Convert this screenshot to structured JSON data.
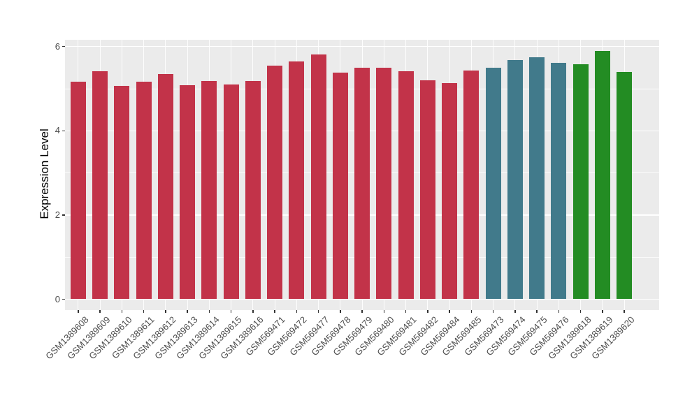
{
  "chart_data": {
    "type": "bar",
    "title": "",
    "xlabel": "",
    "ylabel": "Expression Level",
    "ylim": [
      -0.26,
      6.16
    ],
    "yticks": [
      0,
      2,
      4,
      6
    ],
    "yticks_minor": [
      1,
      3,
      5
    ],
    "grid": "on",
    "legend_position": "none",
    "panel_background": "#EBEBEB",
    "gridline_color": "#FFFFFF",
    "axis_text_color": "#4D4D4D",
    "tick_mark_color": "#333333",
    "categories": [
      "GSM1389608",
      "GSM1389609",
      "GSM1389610",
      "GSM1389611",
      "GSM1389612",
      "GSM1389613",
      "GSM1389614",
      "GSM1389615",
      "GSM1389616",
      "GSM569471",
      "GSM569472",
      "GSM569477",
      "GSM569478",
      "GSM569479",
      "GSM569480",
      "GSM569481",
      "GSM569482",
      "GSM569484",
      "GSM569485",
      "GSM569473",
      "GSM569474",
      "GSM569475",
      "GSM569476",
      "GSM1389618",
      "GSM1389619",
      "GSM1389620"
    ],
    "values": [
      5.16,
      5.41,
      5.06,
      5.17,
      5.35,
      5.09,
      5.19,
      5.1,
      5.19,
      5.55,
      5.64,
      5.81,
      5.38,
      5.5,
      5.5,
      5.42,
      5.2,
      5.13,
      5.43,
      5.5,
      5.68,
      5.75,
      5.61,
      5.58,
      5.89,
      5.39
    ],
    "bar_colors": [
      "#C23349",
      "#C23349",
      "#C23349",
      "#C23349",
      "#C23349",
      "#C23349",
      "#C23349",
      "#C23349",
      "#C23349",
      "#C23349",
      "#C23349",
      "#C23349",
      "#C23349",
      "#C23349",
      "#C23349",
      "#C23349",
      "#C23349",
      "#C23349",
      "#C23349",
      "#417A8B",
      "#417A8B",
      "#417A8B",
      "#417A8B",
      "#238C23",
      "#238C23",
      "#238C23"
    ],
    "palette": {
      "red": "#C23349",
      "teal": "#417A8B",
      "green": "#238C23"
    }
  }
}
